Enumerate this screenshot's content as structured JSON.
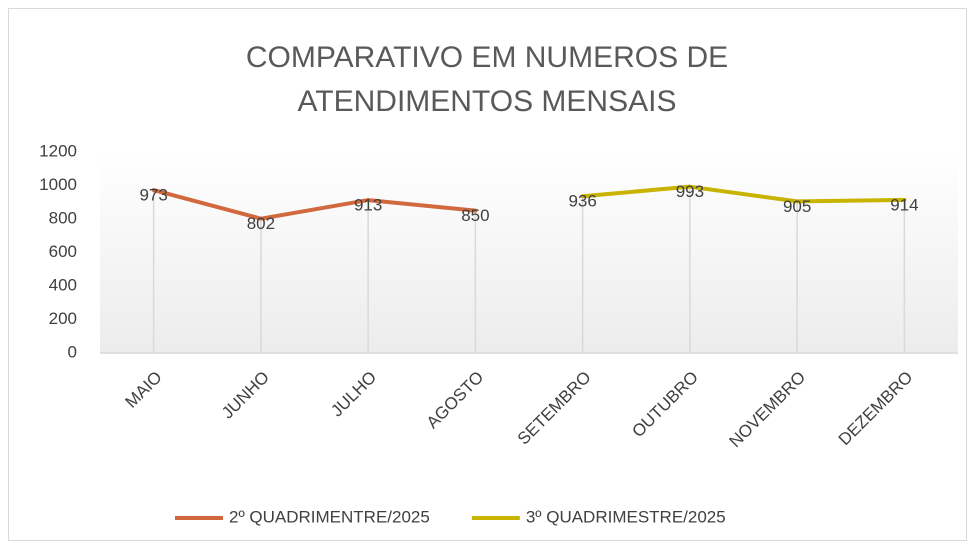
{
  "chart_data": {
    "type": "line",
    "title": "COMPARATIVO EM NUMEROS DE ATENDIMENTOS MENSAIS",
    "categories": [
      "MAIO",
      "JUNHO",
      "JULHO",
      "AGOSTO",
      "SETEMBRO",
      "OUTUBRO",
      "NOVEMBRO",
      "DEZEMBRO"
    ],
    "series": [
      {
        "name": "2º QUADRIMENTRE/2025",
        "color": "#d2693e",
        "values": [
          973,
          802,
          913,
          850,
          null,
          null,
          null,
          null
        ]
      },
      {
        "name": "3º QUADRIMESTRE/2025",
        "color": "#c8b400",
        "values": [
          null,
          null,
          null,
          null,
          936,
          993,
          905,
          914
        ]
      }
    ],
    "ylim": [
      0,
      1200
    ],
    "yticks": [
      0,
      200,
      400,
      600,
      800,
      1000,
      1200
    ],
    "grid": false,
    "legend": "bottom"
  }
}
